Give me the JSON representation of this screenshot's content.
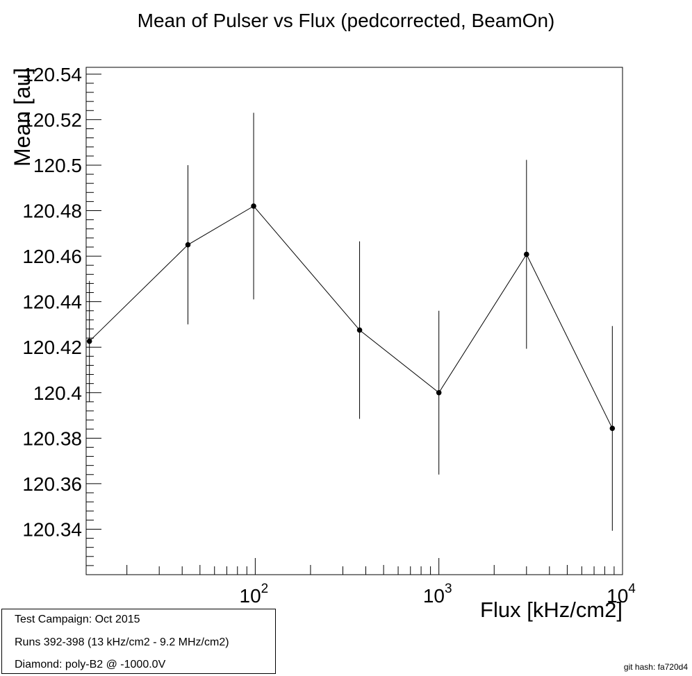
{
  "chart_data": {
    "type": "scatter",
    "title": "Mean of Pulser vs Flux (pedcorrected, BeamOn)",
    "xlabel": "Flux [kHz/cm2]",
    "ylabel": "Mean [au]",
    "xscale": "log",
    "xlim": [
      12,
      10000
    ],
    "ylim": [
      120.32,
      120.543
    ],
    "grid": false,
    "connected": true,
    "y_ticks": [
      120.34,
      120.36,
      120.38,
      120.4,
      120.42,
      120.44,
      120.46,
      120.48,
      120.5,
      120.52,
      120.54
    ],
    "y_tick_labels": [
      "120.34",
      "120.36",
      "120.38",
      "120.4",
      "120.42",
      "120.44",
      "120.46",
      "120.48",
      "120.5",
      "120.52",
      "120.54"
    ],
    "x_major_ticks": [
      {
        "value": 100,
        "base": "10",
        "exp": "2"
      },
      {
        "value": 1000,
        "base": "10",
        "exp": "3"
      },
      {
        "value": 10000,
        "base": "10",
        "exp": "4"
      }
    ],
    "points": [
      {
        "x": 12.5,
        "y": 120.4226,
        "err": 0.0265
      },
      {
        "x": 43,
        "y": 120.465,
        "err": 0.035
      },
      {
        "x": 98,
        "y": 120.482,
        "err": 0.041
      },
      {
        "x": 370,
        "y": 120.4275,
        "err": 0.039
      },
      {
        "x": 1000,
        "y": 120.4,
        "err": 0.036
      },
      {
        "x": 3000,
        "y": 120.4608,
        "err": 0.0415
      },
      {
        "x": 8800,
        "y": 120.3843,
        "err": 0.045
      }
    ]
  },
  "info": {
    "campaign": "Test Campaign: Oct 2015",
    "runs": "Runs 392-398 (13 kHz/cm2 - 9.2 MHz/cm2)",
    "diamond": "Diamond: poly-B2 @ -1000.0V"
  },
  "footer": {
    "git_hash": "git hash: fa720d4"
  }
}
